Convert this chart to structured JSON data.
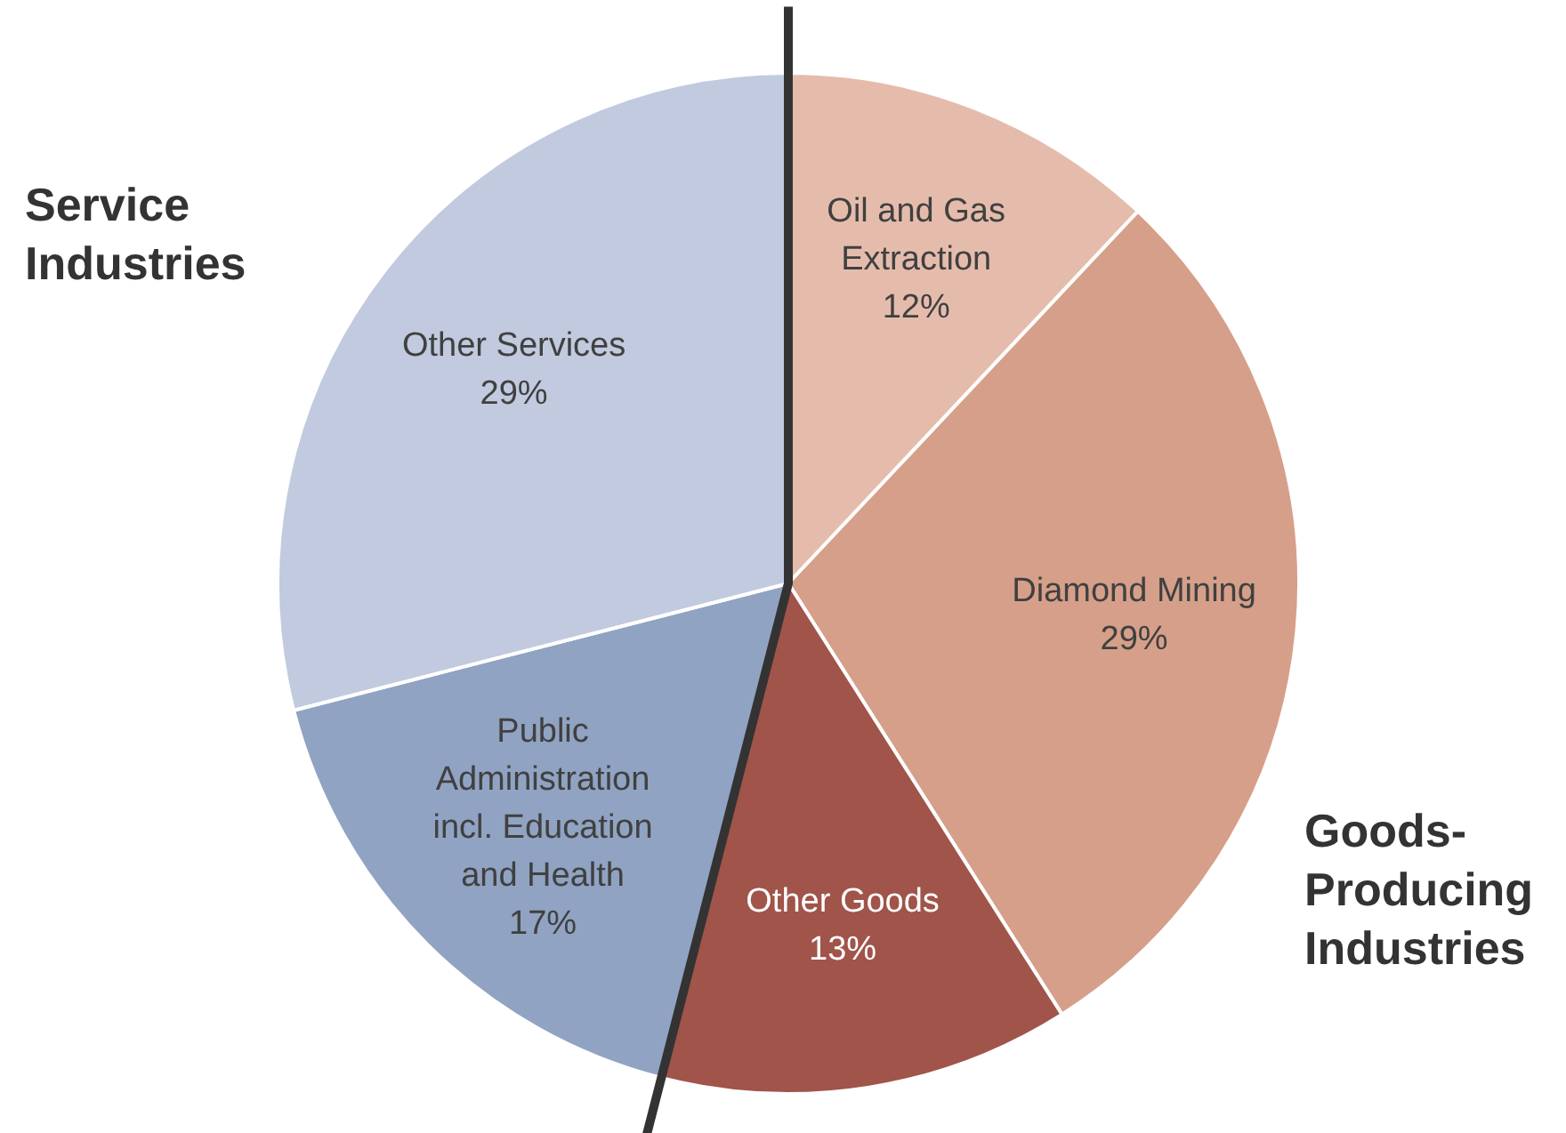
{
  "chart_data": {
    "type": "pie",
    "categories": [
      "Oil and Gas Extraction",
      "Diamond Mining",
      "Other Goods",
      "Public Administration incl. Education and Health",
      "Other Services"
    ],
    "values": [
      12,
      29,
      13,
      17,
      29
    ],
    "colors": [
      "#e5bcac",
      "#d69f89",
      "#a0544a",
      "#90a3c2",
      "#c1cadf"
    ],
    "value_labels": [
      "12%",
      "29%",
      "13%",
      "17%",
      "29%"
    ],
    "annotations": [
      "Service Industries",
      "Goods-Producing Industries"
    ]
  }
}
